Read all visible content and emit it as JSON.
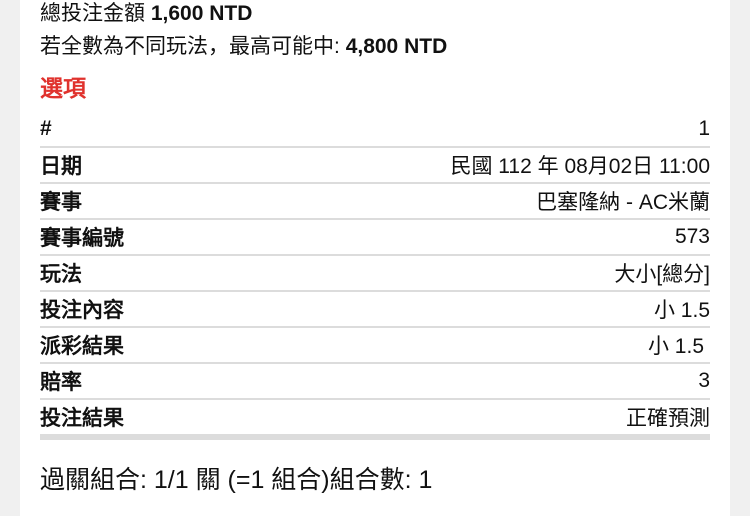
{
  "summary": {
    "total_label": "總投注金額",
    "total_value": "1,600 NTD",
    "max_label": "若全數為不同玩法，最高可能中:",
    "max_value": "4,800 NTD"
  },
  "options_title": "選項",
  "rows": [
    {
      "label": "#",
      "value": "1"
    },
    {
      "label": "日期",
      "value": "民國 112 年 08月02日 11:00"
    },
    {
      "label": "賽事",
      "value": "巴塞隆納 - AC米蘭"
    },
    {
      "label": "賽事編號",
      "value": "573"
    },
    {
      "label": "玩法",
      "value": "大小[總分]"
    },
    {
      "label": "投注內容",
      "value": "小 1.5"
    },
    {
      "label": "派彩結果",
      "value": "小 1.5"
    },
    {
      "label": "賠率",
      "value": "3"
    },
    {
      "label": "投注結果",
      "value": "正確預測"
    }
  ],
  "combo_text": "過關組合: 1/1 關 (=1 組合)組合數: 1",
  "colors": {
    "accent": "#e0322d",
    "background": "#f0f0f0",
    "divider": "#dcdcdc"
  }
}
